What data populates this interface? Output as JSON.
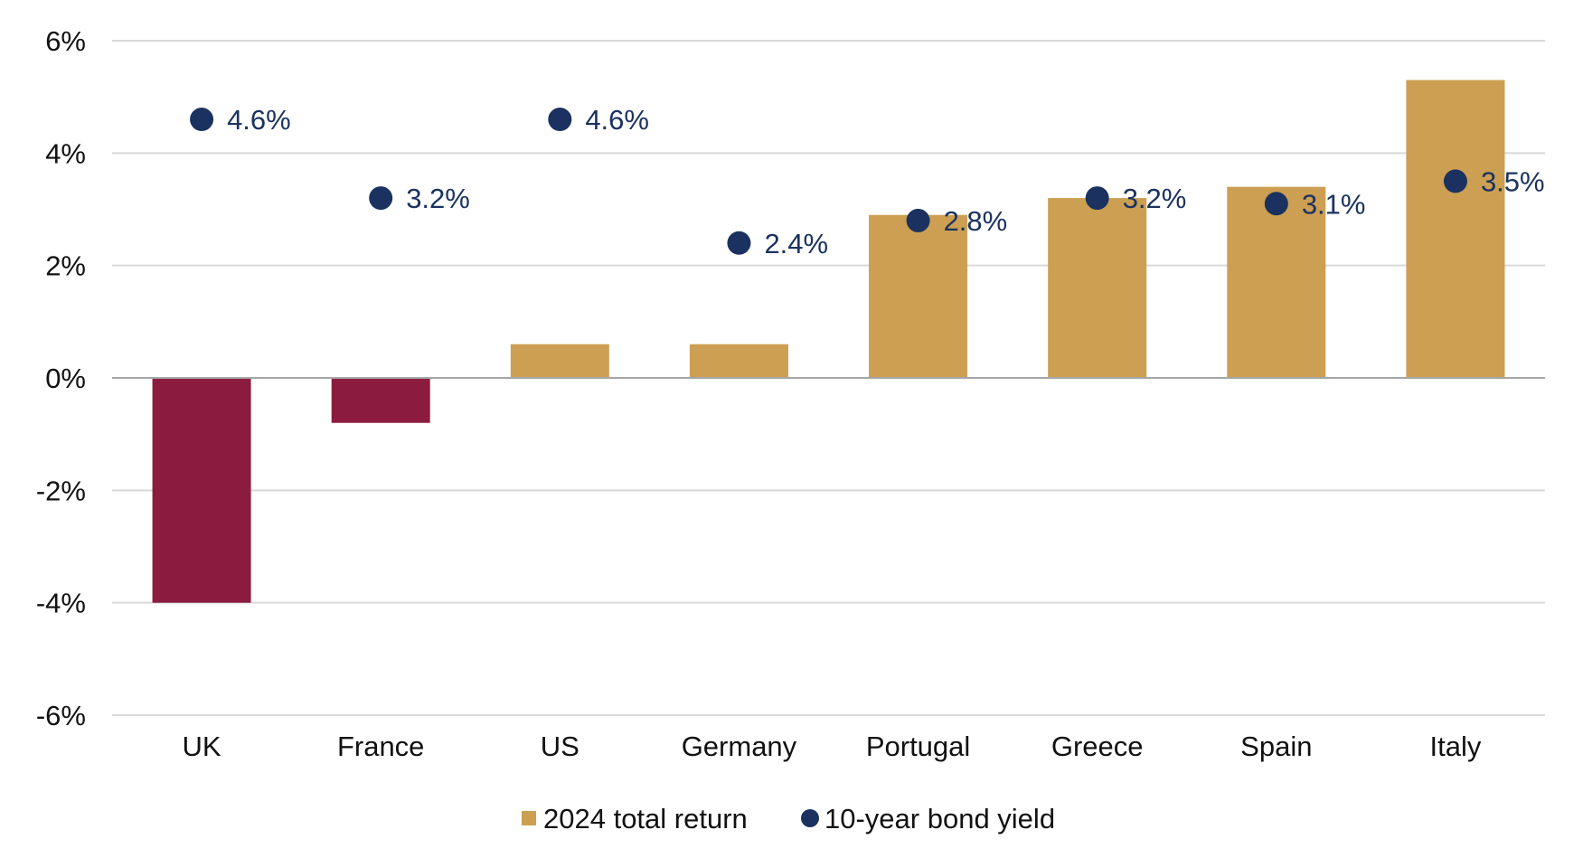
{
  "chart_data": {
    "type": "bar",
    "title": "",
    "xlabel": "",
    "ylabel": "",
    "ylim": [
      -6,
      6
    ],
    "yticks": [
      6,
      4,
      2,
      0,
      -2,
      -4,
      -6
    ],
    "ytick_labels": [
      "6%",
      "4%",
      "2%",
      "0%",
      "-2%",
      "-4%",
      "-6%"
    ],
    "grid": true,
    "categories": [
      "UK",
      "France",
      "US",
      "Germany",
      "Portugal",
      "Greece",
      "Spain",
      "Italy"
    ],
    "series": [
      {
        "name": "2024 total return",
        "type": "bar",
        "values": [
          -4.0,
          -0.8,
          0.6,
          0.6,
          2.9,
          3.2,
          3.4,
          5.3
        ],
        "color_positive": "#CC9F52",
        "color_negative": "#8B1C3F"
      },
      {
        "name": "10-year bond yield",
        "type": "scatter",
        "values": [
          4.6,
          3.2,
          4.6,
          2.4,
          2.8,
          3.2,
          3.1,
          3.5
        ],
        "labels": [
          "4.6%",
          "3.2%",
          "4.6%",
          "2.4%",
          "2.8%",
          "3.2%",
          "3.1%",
          "3.5%"
        ],
        "color": "#1B3260"
      }
    ],
    "legend": {
      "position": "bottom-center",
      "items": [
        "2024 total return",
        "10-year bond yield"
      ]
    },
    "colors": {
      "gridline": "#D9D9D9",
      "zero_line": "#A6A6A6",
      "label_text": "#1B3260"
    }
  }
}
